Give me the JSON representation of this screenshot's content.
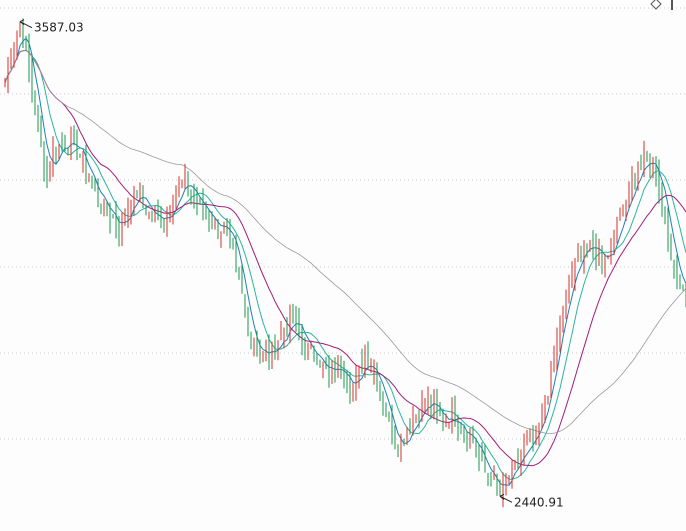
{
  "chart_data": {
    "type": "candlestick",
    "title": "",
    "xlabel": "",
    "ylabel": "",
    "ylim": [
      2420,
      3620
    ],
    "grid": true,
    "annotations": {
      "high": {
        "label": "3587.03",
        "value": 3587.03
      },
      "low": {
        "label": "2440.91",
        "value": 2440.91
      }
    },
    "anchors": [
      [
        0,
        3440
      ],
      [
        3,
        3540
      ],
      [
        5,
        3587.03
      ],
      [
        8,
        3470
      ],
      [
        11,
        3330
      ],
      [
        14,
        3210
      ],
      [
        16,
        3270
      ],
      [
        20,
        3300
      ],
      [
        24,
        3280
      ],
      [
        29,
        3190
      ],
      [
        33,
        3140
      ],
      [
        38,
        3090
      ],
      [
        44,
        3180
      ],
      [
        48,
        3120
      ],
      [
        53,
        3110
      ],
      [
        56,
        3160
      ],
      [
        60,
        3200
      ],
      [
        64,
        3150
      ],
      [
        70,
        3100
      ],
      [
        74,
        3080
      ],
      [
        78,
        2960
      ],
      [
        82,
        2820
      ],
      [
        86,
        2780
      ],
      [
        89,
        2790
      ],
      [
        93,
        2840
      ],
      [
        96,
        2870
      ],
      [
        100,
        2800
      ],
      [
        104,
        2780
      ],
      [
        108,
        2730
      ],
      [
        112,
        2760
      ],
      [
        116,
        2700
      ],
      [
        120,
        2780
      ],
      [
        124,
        2730
      ],
      [
        128,
        2620
      ],
      [
        131,
        2560
      ],
      [
        134,
        2600
      ],
      [
        137,
        2640
      ],
      [
        141,
        2670
      ],
      [
        146,
        2620
      ],
      [
        149,
        2640
      ],
      [
        152,
        2610
      ],
      [
        156,
        2580
      ],
      [
        159,
        2510
      ],
      [
        162,
        2490
      ],
      [
        165,
        2440.91
      ],
      [
        169,
        2500
      ],
      [
        173,
        2550
      ],
      [
        177,
        2580
      ],
      [
        181,
        2700
      ],
      [
        185,
        2860
      ],
      [
        189,
        2980
      ],
      [
        193,
        3050
      ],
      [
        197,
        3030
      ],
      [
        201,
        3020
      ],
      [
        205,
        3120
      ],
      [
        209,
        3200
      ],
      [
        213,
        3250
      ],
      [
        217,
        3230
      ],
      [
        221,
        3060
      ],
      [
        224,
        2970
      ],
      [
        227,
        2930
      ]
    ],
    "candles": 228,
    "series": [
      {
        "type": "candle",
        "up_color": "#d73027",
        "down_color": "#1a9850"
      },
      {
        "ma": 5,
        "color": "#1f7fbf"
      },
      {
        "ma": 10,
        "color": "#2bb5a0"
      },
      {
        "ma": 20,
        "color": "#a01d7a"
      },
      {
        "ma": 60,
        "color": "#9a9a9a"
      }
    ]
  },
  "ui": {
    "corner_icon": "diamond-icon"
  }
}
